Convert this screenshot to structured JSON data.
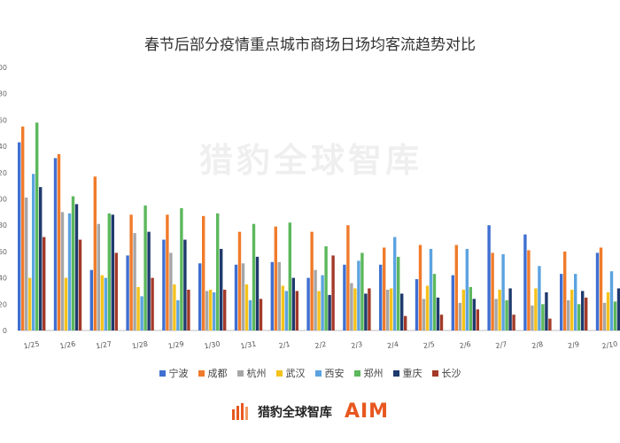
{
  "chart_data": {
    "type": "bar",
    "title": "春节后部分疫情重点城市商场日场均客流趋势对比",
    "xlabel": "",
    "ylabel": "",
    "ylim": [
      0,
      200
    ],
    "y_ticks": [
      "0",
      "20",
      "40",
      "60",
      "80",
      "100",
      "120",
      "140",
      "160",
      "180",
      "200"
    ],
    "grid": false,
    "legend_position": "bottom",
    "categories": [
      "1/25",
      "1/26",
      "1/27",
      "1/28",
      "1/29",
      "1/30",
      "1/31",
      "2/1",
      "2/2",
      "2/3",
      "2/4",
      "2/5",
      "2/6",
      "2/7",
      "2/8",
      "2/9",
      "2/10"
    ],
    "series": [
      {
        "name": "宁波",
        "color": "#3f6fd1",
        "values": [
          143,
          131,
          46,
          57,
          69,
          51,
          50,
          52,
          40,
          50,
          50,
          39,
          42,
          80,
          73,
          43,
          59
        ]
      },
      {
        "name": "成都",
        "color": "#f07b2b",
        "values": [
          155,
          134,
          117,
          88,
          88,
          87,
          75,
          79,
          75,
          80,
          63,
          65,
          65,
          59,
          61,
          60,
          63
        ]
      },
      {
        "name": "杭州",
        "color": "#a6a6a6",
        "values": [
          101,
          90,
          81,
          74,
          59,
          30,
          51,
          52,
          46,
          36,
          31,
          24,
          21,
          24,
          19,
          23,
          21
        ]
      },
      {
        "name": "武汉",
        "color": "#f5c21b",
        "values": [
          40,
          40,
          42,
          33,
          35,
          31,
          35,
          34,
          30,
          32,
          32,
          34,
          31,
          31,
          32,
          31,
          29
        ]
      },
      {
        "name": "西安",
        "color": "#5ba3e0",
        "values": [
          119,
          89,
          40,
          26,
          23,
          29,
          23,
          30,
          42,
          53,
          71,
          62,
          62,
          58,
          49,
          43,
          45
        ]
      },
      {
        "name": "郑州",
        "color": "#5cb85c",
        "values": [
          158,
          102,
          89,
          95,
          93,
          89,
          81,
          82,
          64,
          59,
          56,
          43,
          33,
          23,
          20,
          20,
          22
        ]
      },
      {
        "name": "重庆",
        "color": "#1f3a6e",
        "values": [
          109,
          96,
          88,
          75,
          69,
          62,
          56,
          40,
          27,
          28,
          28,
          25,
          24,
          32,
          29,
          30,
          32
        ]
      },
      {
        "name": "长沙",
        "color": "#a33a2a",
        "values": [
          71,
          69,
          59,
          40,
          31,
          31,
          24,
          30,
          57,
          32,
          11,
          12,
          16,
          12,
          9,
          25,
          24
        ]
      }
    ]
  },
  "watermark_text": "猎豹全球智库",
  "footer": {
    "logo_text": "猎豹全球智库",
    "brand_mark": "AIM"
  }
}
